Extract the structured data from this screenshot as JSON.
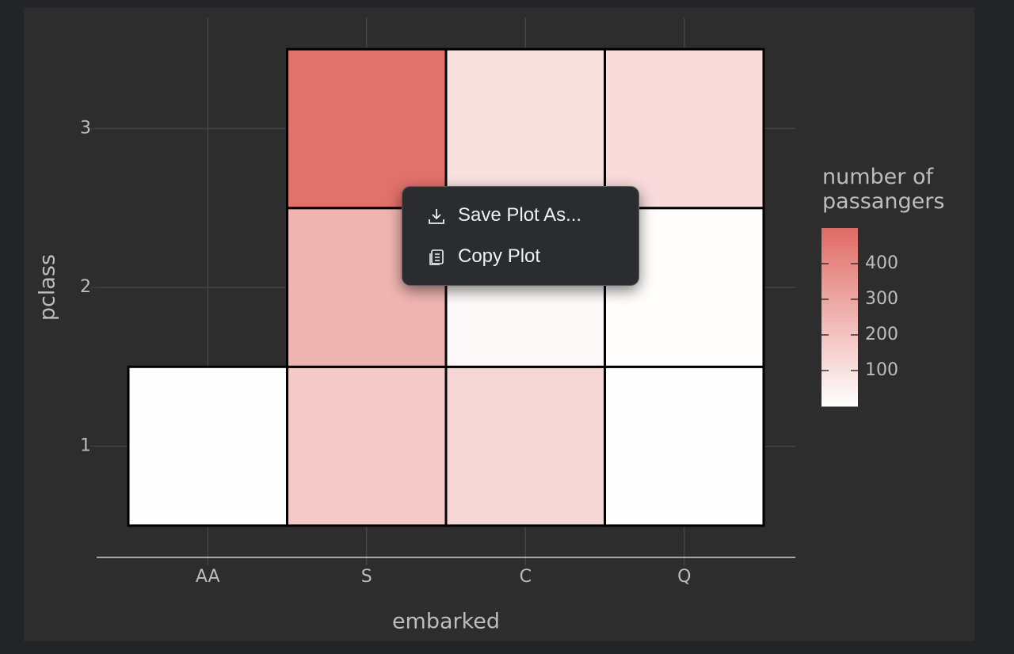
{
  "chart_data": {
    "type": "heatmap",
    "x_label": "embarked",
    "y_label": "pclass",
    "categories": [
      "AA",
      "S",
      "C",
      "Q"
    ],
    "ylim": [
      0.3,
      3.7
    ],
    "yticks": [
      1,
      2,
      3
    ],
    "z": [
      [
        2,
        180,
        140,
        3
      ],
      [
        null,
        250,
        20,
        5
      ],
      [
        null,
        480,
        100,
        120
      ]
    ],
    "legend_title": "number of passangers",
    "zlim": [
      0,
      500
    ],
    "zticks": [
      100,
      200,
      300,
      400
    ],
    "colorscale": [
      "#ffffff",
      "#e06b65"
    ],
    "grid": true
  },
  "context_menu": {
    "items": [
      "Save Plot As...",
      "Copy Plot"
    ]
  }
}
